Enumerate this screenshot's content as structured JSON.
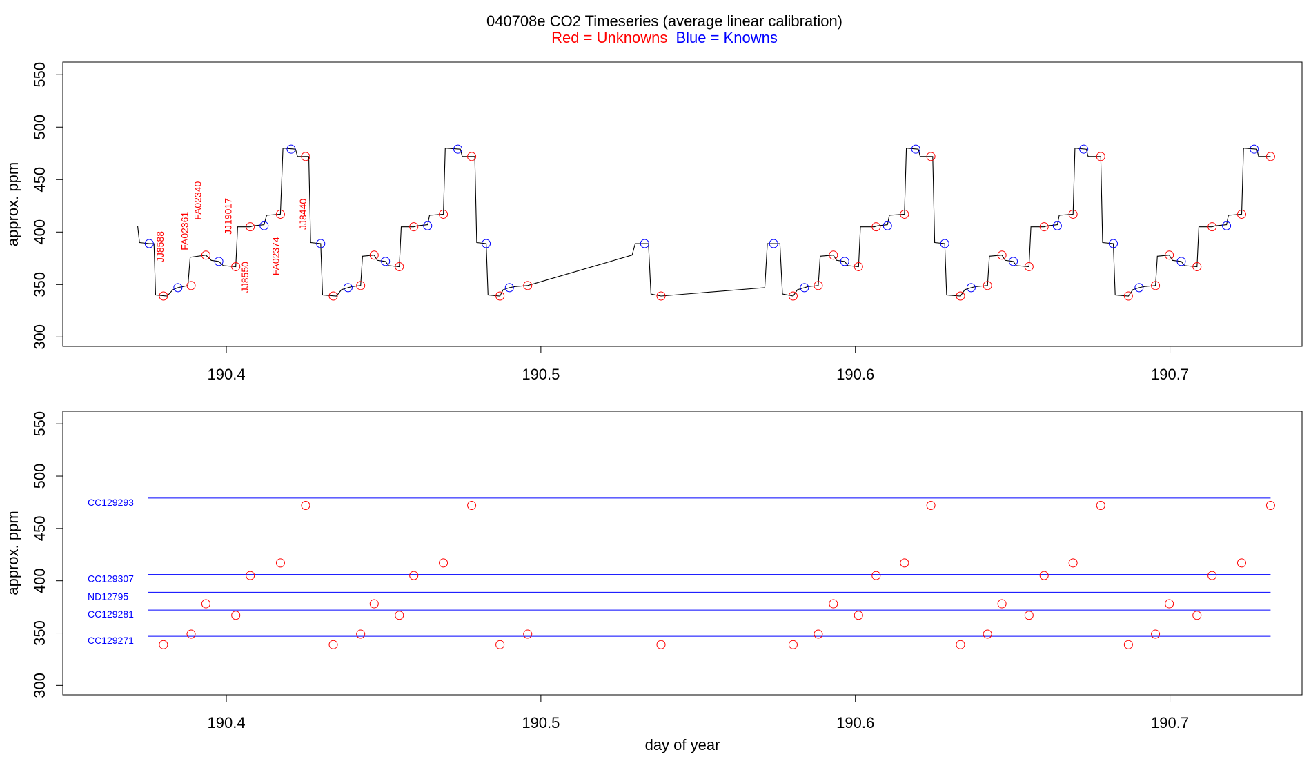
{
  "title": "040708e   CO2 Timeseries (average linear calibration)",
  "subtitle": {
    "red": "Red = Unknowns",
    "blue": "Blue = Knowns"
  },
  "colors": {
    "unknown": "#ff0000",
    "known": "#0000ff",
    "line": "#000000"
  },
  "chart_data": [
    {
      "type": "line",
      "panel": "top",
      "ylabel": "approx. ppm",
      "xlabel": "",
      "xlim": [
        190.348,
        190.742
      ],
      "ylim": [
        291,
        562
      ],
      "yticks": [
        300,
        350,
        400,
        450,
        500,
        550
      ],
      "xticks": [
        190.4,
        190.5,
        190.6,
        190.7
      ],
      "xtick_labels": [
        "190.4",
        "190.5",
        "190.6",
        "190.7"
      ],
      "ytick_labels": [
        "300",
        "350",
        "400",
        "450",
        "500",
        "550"
      ],
      "trace": [
        [
          190.3718,
          406
        ],
        [
          190.3724,
          390
        ],
        [
          190.3755,
          389
        ],
        [
          190.377,
          389
        ],
        [
          190.3775,
          340
        ],
        [
          190.3812,
          339
        ],
        [
          190.383,
          345
        ],
        [
          190.3846,
          347
        ],
        [
          190.3862,
          348
        ],
        [
          190.3878,
          349
        ],
        [
          190.3885,
          376
        ],
        [
          190.3935,
          378
        ],
        [
          190.3952,
          373
        ],
        [
          190.3976,
          372
        ],
        [
          190.399,
          368
        ],
        [
          190.403,
          367
        ],
        [
          190.4036,
          405
        ],
        [
          190.4076,
          405
        ],
        [
          190.4086,
          406
        ],
        [
          190.412,
          407
        ],
        [
          190.4128,
          416
        ],
        [
          190.4172,
          417
        ],
        [
          190.418,
          480
        ],
        [
          190.422,
          479
        ],
        [
          190.4226,
          472
        ],
        [
          190.4262,
          472
        ],
        [
          190.4268,
          390
        ],
        [
          190.43,
          389
        ],
        [
          190.4306,
          340
        ],
        [
          190.435,
          339
        ],
        [
          190.4366,
          345
        ],
        [
          190.4387,
          347
        ],
        [
          190.44,
          348
        ],
        [
          190.4427,
          349
        ],
        [
          190.4433,
          377
        ],
        [
          190.447,
          378
        ],
        [
          190.448,
          373
        ],
        [
          190.4506,
          372
        ],
        [
          190.4516,
          368
        ],
        [
          190.455,
          367
        ],
        [
          190.4556,
          405
        ],
        [
          190.4596,
          405
        ],
        [
          190.4606,
          406
        ],
        [
          190.464,
          407
        ],
        [
          190.4646,
          416
        ],
        [
          190.469,
          417
        ],
        [
          190.4696,
          480
        ],
        [
          190.4744,
          479
        ],
        [
          190.475,
          472
        ],
        [
          190.479,
          472
        ],
        [
          190.4796,
          390
        ],
        [
          190.4826,
          389
        ],
        [
          190.4832,
          340
        ],
        [
          190.487,
          339
        ],
        [
          190.488,
          345
        ],
        [
          190.49,
          347
        ],
        [
          190.4918,
          348
        ],
        [
          190.4958,
          349
        ],
        [
          190.529,
          378
        ],
        [
          190.53,
          389
        ],
        [
          190.5342,
          389
        ],
        [
          190.535,
          341
        ],
        [
          190.5382,
          339
        ],
        [
          190.5712,
          347
        ],
        [
          190.572,
          389
        ],
        [
          190.576,
          389
        ],
        [
          190.5768,
          341
        ],
        [
          190.5802,
          339
        ],
        [
          190.5816,
          345
        ],
        [
          190.5838,
          347
        ],
        [
          190.585,
          348
        ],
        [
          190.5882,
          349
        ],
        [
          190.5888,
          377
        ],
        [
          190.593,
          378
        ],
        [
          190.594,
          373
        ],
        [
          190.5966,
          372
        ],
        [
          190.5976,
          368
        ],
        [
          190.601,
          367
        ],
        [
          190.6016,
          405
        ],
        [
          190.606,
          405
        ],
        [
          190.607,
          406
        ],
        [
          190.6102,
          407
        ],
        [
          190.6108,
          416
        ],
        [
          190.6156,
          417
        ],
        [
          190.6162,
          480
        ],
        [
          190.62,
          479
        ],
        [
          190.6206,
          472
        ],
        [
          190.6246,
          472
        ],
        [
          190.6252,
          390
        ],
        [
          190.6284,
          389
        ],
        [
          190.629,
          340
        ],
        [
          190.6334,
          339
        ],
        [
          190.6348,
          345
        ],
        [
          190.6368,
          347
        ],
        [
          190.6384,
          348
        ],
        [
          190.642,
          349
        ],
        [
          190.6426,
          377
        ],
        [
          190.6466,
          378
        ],
        [
          190.6476,
          373
        ],
        [
          190.6502,
          372
        ],
        [
          190.6512,
          368
        ],
        [
          190.6552,
          367
        ],
        [
          190.6558,
          405
        ],
        [
          190.66,
          405
        ],
        [
          190.661,
          406
        ],
        [
          190.6642,
          407
        ],
        [
          190.6648,
          416
        ],
        [
          190.6692,
          417
        ],
        [
          190.6698,
          480
        ],
        [
          190.6734,
          479
        ],
        [
          190.674,
          472
        ],
        [
          190.678,
          472
        ],
        [
          190.6786,
          390
        ],
        [
          190.682,
          389
        ],
        [
          190.6826,
          340
        ],
        [
          190.6868,
          339
        ],
        [
          190.6882,
          345
        ],
        [
          190.6902,
          347
        ],
        [
          190.6918,
          348
        ],
        [
          190.6954,
          349
        ],
        [
          190.696,
          377
        ],
        [
          190.6998,
          378
        ],
        [
          190.7008,
          373
        ],
        [
          190.7036,
          372
        ],
        [
          190.7046,
          368
        ],
        [
          190.7086,
          367
        ],
        [
          190.7092,
          405
        ],
        [
          190.7134,
          405
        ],
        [
          190.7144,
          406
        ],
        [
          190.718,
          407
        ],
        [
          190.7186,
          416
        ],
        [
          190.7228,
          417
        ],
        [
          190.7234,
          480
        ],
        [
          190.7276,
          479
        ],
        [
          190.7282,
          472
        ],
        [
          190.732,
          472
        ]
      ],
      "knowns": [
        [
          190.3755,
          389
        ],
        [
          190.3846,
          347
        ],
        [
          190.3976,
          372
        ],
        [
          190.412,
          406
        ],
        [
          190.4206,
          479
        ],
        [
          190.43,
          389
        ],
        [
          190.4387,
          347
        ],
        [
          190.4506,
          372
        ],
        [
          190.464,
          406
        ],
        [
          190.4736,
          479
        ],
        [
          190.4826,
          389
        ],
        [
          190.49,
          347
        ],
        [
          190.533,
          389
        ],
        [
          190.574,
          389
        ],
        [
          190.5838,
          347
        ],
        [
          190.5966,
          372
        ],
        [
          190.6102,
          406
        ],
        [
          190.6192,
          479
        ],
        [
          190.6284,
          389
        ],
        [
          190.6368,
          347
        ],
        [
          190.6502,
          372
        ],
        [
          190.6642,
          406
        ],
        [
          190.6726,
          479
        ],
        [
          190.682,
          389
        ],
        [
          190.6902,
          347
        ],
        [
          190.7036,
          372
        ],
        [
          190.718,
          406
        ],
        [
          190.7268,
          479
        ]
      ],
      "unknowns": [
        [
          190.38,
          339
        ],
        [
          190.3888,
          349
        ],
        [
          190.3935,
          378
        ],
        [
          190.403,
          367
        ],
        [
          190.4076,
          405
        ],
        [
          190.4172,
          417
        ],
        [
          190.4252,
          472
        ],
        [
          190.434,
          339
        ],
        [
          190.4427,
          349
        ],
        [
          190.447,
          378
        ],
        [
          190.455,
          367
        ],
        [
          190.4596,
          405
        ],
        [
          190.469,
          417
        ],
        [
          190.478,
          472
        ],
        [
          190.487,
          339
        ],
        [
          190.4958,
          349
        ],
        [
          190.5382,
          339
        ],
        [
          190.5802,
          339
        ],
        [
          190.5882,
          349
        ],
        [
          190.593,
          378
        ],
        [
          190.601,
          367
        ],
        [
          190.6066,
          405
        ],
        [
          190.6156,
          417
        ],
        [
          190.624,
          472
        ],
        [
          190.6334,
          339
        ],
        [
          190.642,
          349
        ],
        [
          190.6466,
          378
        ],
        [
          190.6552,
          367
        ],
        [
          190.66,
          405
        ],
        [
          190.6692,
          417
        ],
        [
          190.678,
          472
        ],
        [
          190.6868,
          339
        ],
        [
          190.6954,
          349
        ],
        [
          190.6998,
          378
        ],
        [
          190.7086,
          367
        ],
        [
          190.7134,
          405
        ],
        [
          190.7228,
          417
        ],
        [
          190.732,
          472
        ]
      ],
      "annotations": [
        {
          "text": "JJ8588",
          "x": 190.38,
          "y": 386
        },
        {
          "text": "FA02361",
          "x": 190.3878,
          "y": 401
        },
        {
          "text": "FA02340",
          "x": 190.392,
          "y": 430
        },
        {
          "text": "JJ19017",
          "x": 190.4016,
          "y": 415
        },
        {
          "text": "JJ8550",
          "x": 190.407,
          "y": 357
        },
        {
          "text": "FA02374",
          "x": 190.4168,
          "y": 377
        },
        {
          "text": "JJ8440",
          "x": 190.4254,
          "y": 417
        }
      ]
    },
    {
      "type": "scatter",
      "panel": "bottom",
      "ylabel": "approx. ppm",
      "xlabel": "day of year",
      "xlim": [
        190.348,
        190.742
      ],
      "ylim": [
        291,
        562
      ],
      "yticks": [
        300,
        350,
        400,
        450,
        500,
        550
      ],
      "xticks": [
        190.4,
        190.5,
        190.6,
        190.7
      ],
      "xtick_labels": [
        "190.4",
        "190.5",
        "190.6",
        "190.7"
      ],
      "ytick_labels": [
        "300",
        "350",
        "400",
        "450",
        "500",
        "550"
      ],
      "reference_lines": [
        {
          "name": "CC129293",
          "y": 479
        },
        {
          "name": "CC129307",
          "y": 406
        },
        {
          "name": "ND12795",
          "y": 389
        },
        {
          "name": "CC129281",
          "y": 372
        },
        {
          "name": "CC129271",
          "y": 347
        }
      ],
      "line_x_range": [
        190.375,
        190.732
      ],
      "unknowns": [
        [
          190.38,
          339
        ],
        [
          190.3888,
          349
        ],
        [
          190.3935,
          378
        ],
        [
          190.403,
          367
        ],
        [
          190.4076,
          405
        ],
        [
          190.4172,
          417
        ],
        [
          190.4252,
          472
        ],
        [
          190.434,
          339
        ],
        [
          190.4427,
          349
        ],
        [
          190.447,
          378
        ],
        [
          190.455,
          367
        ],
        [
          190.4596,
          405
        ],
        [
          190.469,
          417
        ],
        [
          190.478,
          472
        ],
        [
          190.487,
          339
        ],
        [
          190.4958,
          349
        ],
        [
          190.5382,
          339
        ],
        [
          190.5802,
          339
        ],
        [
          190.5882,
          349
        ],
        [
          190.593,
          378
        ],
        [
          190.601,
          367
        ],
        [
          190.6066,
          405
        ],
        [
          190.6156,
          417
        ],
        [
          190.624,
          472
        ],
        [
          190.6334,
          339
        ],
        [
          190.642,
          349
        ],
        [
          190.6466,
          378
        ],
        [
          190.6552,
          367
        ],
        [
          190.66,
          405
        ],
        [
          190.6692,
          417
        ],
        [
          190.678,
          472
        ],
        [
          190.6868,
          339
        ],
        [
          190.6954,
          349
        ],
        [
          190.6998,
          378
        ],
        [
          190.7086,
          367
        ],
        [
          190.7134,
          405
        ],
        [
          190.7228,
          417
        ],
        [
          190.732,
          472
        ]
      ]
    }
  ]
}
